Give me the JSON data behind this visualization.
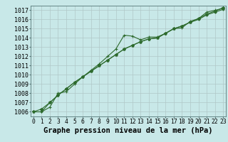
{
  "title": "Graphe pression niveau de la mer (hPa)",
  "xlabel_hours": [
    0,
    1,
    2,
    3,
    4,
    5,
    6,
    7,
    8,
    9,
    10,
    11,
    12,
    13,
    14,
    15,
    16,
    17,
    18,
    19,
    20,
    21,
    22,
    23
  ],
  "line1": [
    1006.0,
    1006.0,
    1006.5,
    1008.0,
    1008.2,
    1009.0,
    1009.8,
    1010.5,
    1011.2,
    1012.0,
    1012.8,
    1014.3,
    1014.2,
    1013.8,
    1014.1,
    1014.1,
    1014.5,
    1015.0,
    1015.1,
    1015.8,
    1016.1,
    1016.8,
    1017.0,
    1017.2
  ],
  "line2": [
    1006.0,
    1006.0,
    1007.0,
    1007.8,
    1008.5,
    1009.2,
    1009.8,
    1010.4,
    1011.0,
    1011.6,
    1012.2,
    1012.8,
    1013.2,
    1013.6,
    1013.9,
    1014.0,
    1014.5,
    1015.0,
    1015.3,
    1015.7,
    1016.0,
    1016.5,
    1016.8,
    1017.1
  ],
  "line3": [
    1006.0,
    1006.3,
    1007.0,
    1007.8,
    1008.5,
    1009.2,
    1009.8,
    1010.4,
    1011.0,
    1011.6,
    1012.2,
    1012.8,
    1013.2,
    1013.6,
    1013.9,
    1014.0,
    1014.5,
    1015.0,
    1015.3,
    1015.7,
    1016.1,
    1016.6,
    1016.9,
    1017.3
  ],
  "line_color": "#2d6a2d",
  "bg_color": "#c8e8e8",
  "grid_color": "#b0c8c8",
  "ylim": [
    1005.5,
    1017.5
  ],
  "yticks": [
    1006,
    1007,
    1008,
    1009,
    1010,
    1011,
    1012,
    1013,
    1014,
    1015,
    1016,
    1017
  ],
  "title_fontsize": 7.5,
  "tick_fontsize": 6.0
}
